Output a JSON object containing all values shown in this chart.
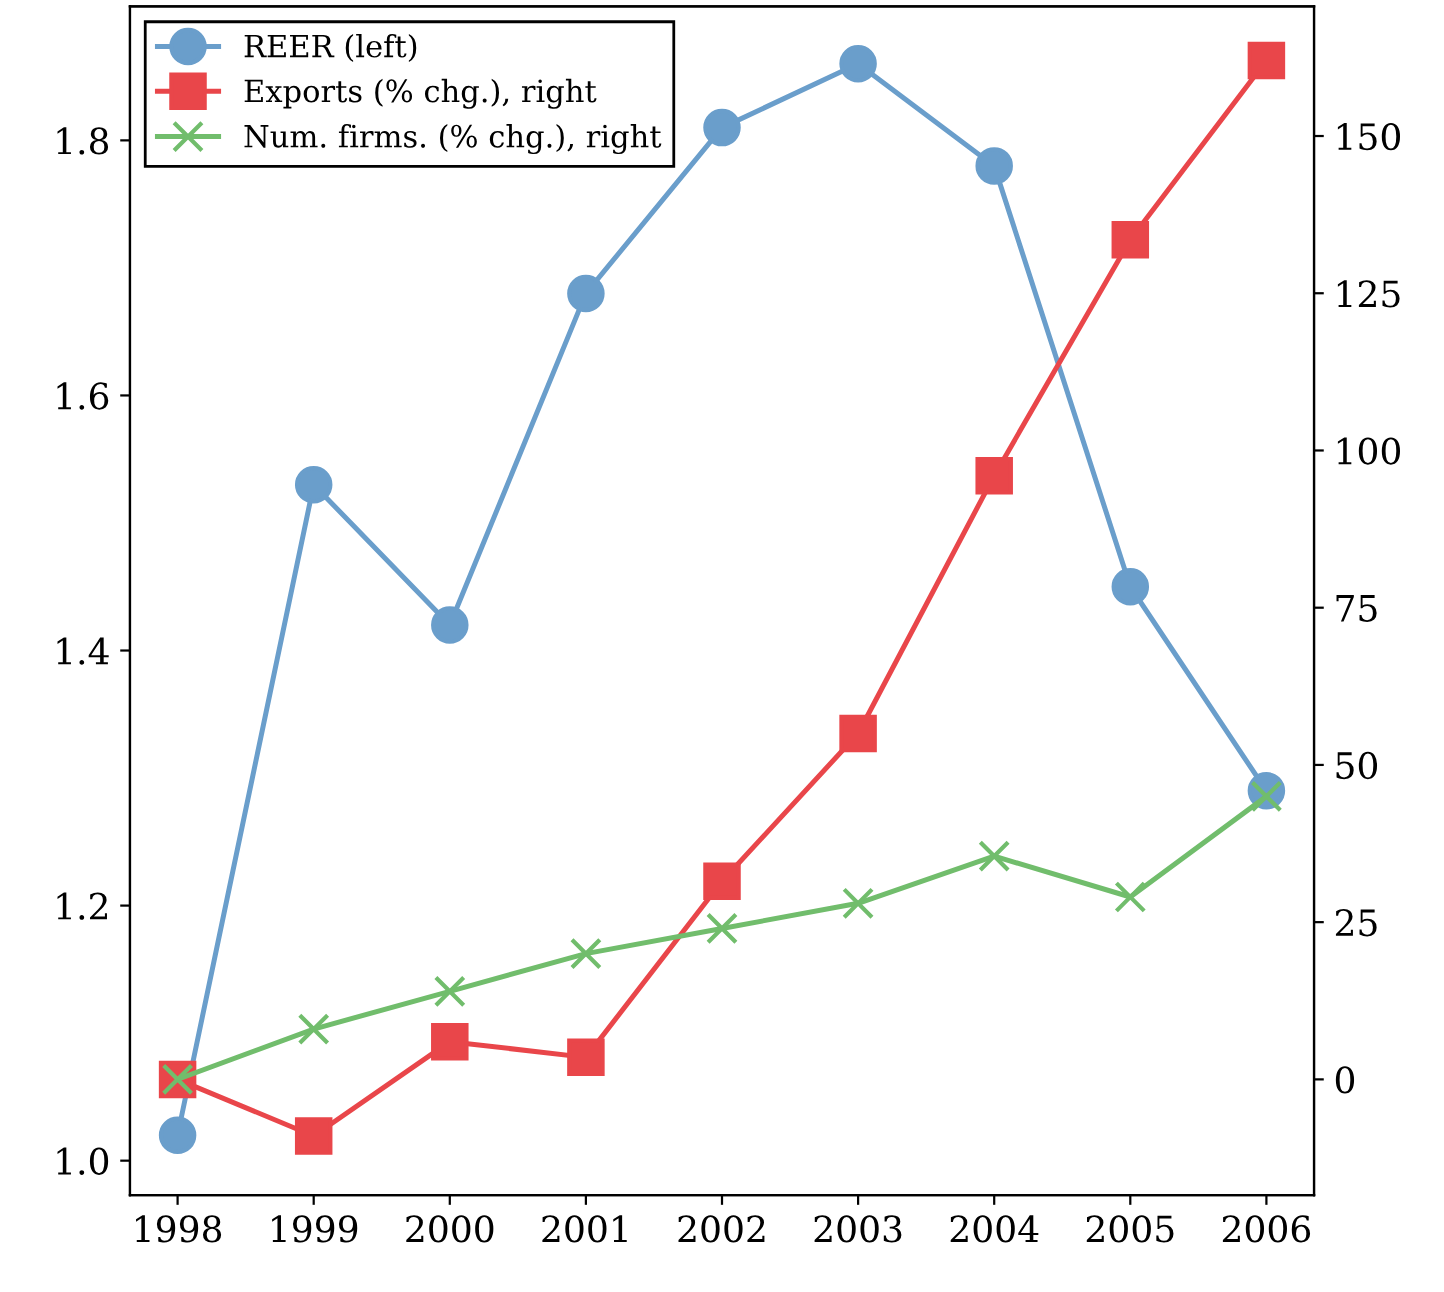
{
  "chart_data": {
    "type": "line",
    "categories": [
      "1998",
      "1999",
      "2000",
      "2001",
      "2002",
      "2003",
      "2004",
      "2005",
      "2006"
    ],
    "series": [
      {
        "name": "REER (left)",
        "color": "#6a9ecb",
        "marker": "circle",
        "values": [
          1.02,
          1.53,
          1.42,
          1.68,
          1.81,
          1.86,
          1.78,
          1.45,
          1.29
        ]
      },
      {
        "name": "Exports (% chg.), right",
        "color": "#e9464a",
        "marker": "square",
        "axis": "y2",
        "values": [
          0,
          -9,
          6,
          3.5,
          31.5,
          55,
          96,
          133.5,
          162
        ]
      },
      {
        "name": "Num. firms. (% chg.), right",
        "color": "#71bd6c",
        "marker": "cross",
        "axis": "y2",
        "values": [
          0,
          8,
          14,
          20,
          24,
          28,
          35.5,
          29,
          45
        ]
      }
    ],
    "ylim": [
      0.973,
      1.905
    ],
    "yticks": [
      {
        "value": 1.0,
        "label": "1.0"
      },
      1.2,
      1.4,
      1.6,
      1.8
    ],
    "y2lim": [
      -18.4,
      170.6
    ],
    "y2ticks": [
      0,
      25,
      50,
      75,
      100,
      125,
      150
    ],
    "legend": "top left",
    "grid": false
  }
}
